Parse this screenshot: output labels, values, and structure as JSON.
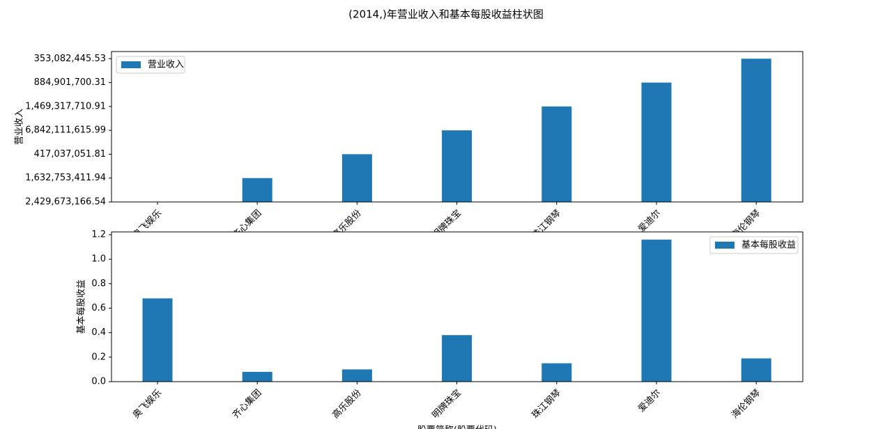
{
  "chart_data": [
    {
      "type": "bar",
      "title": "(2014,)年营业收入和基本每股收益柱状图",
      "y_label": "营业收入",
      "categories": [
        "奥飞娱乐",
        "齐心集团",
        "高乐股份",
        "明牌珠宝",
        "珠江钢琴",
        "爱迪尔",
        "海伦钢琴"
      ],
      "series": [
        {
          "name": "营业收入",
          "color": "#1f77b4",
          "values": [
            0,
            1,
            2,
            3,
            4,
            5,
            6
          ]
        }
      ],
      "ylim": [
        0,
        6.3
      ],
      "yticks": [
        {
          "value": 0,
          "label": "2,429,673,166.54"
        },
        {
          "value": 1,
          "label": "1,632,753,411.94"
        },
        {
          "value": 2,
          "label": "417,037,051.81"
        },
        {
          "value": 3,
          "label": "6,842,111,615.99"
        },
        {
          "value": 4,
          "label": "1,469,317,710.91"
        },
        {
          "value": 5,
          "label": "884,901,700.31"
        },
        {
          "value": 6,
          "label": "353,082,445.53"
        }
      ],
      "legend": "upper left"
    },
    {
      "type": "bar",
      "x_label": "股票简称(股票代码)",
      "y_label": "基本每股收益",
      "categories": [
        "奥飞娱乐",
        "齐心集团",
        "高乐股份",
        "明牌珠宝",
        "珠江钢琴",
        "爱迪尔",
        "海伦钢琴"
      ],
      "series": [
        {
          "name": "基本每股收益",
          "color": "#1f77b4",
          "values": [
            0.68,
            0.08,
            0.1,
            0.38,
            0.15,
            1.16,
            0.19
          ]
        }
      ],
      "ylim": [
        0,
        1.223
      ],
      "yticks": [
        {
          "value": 0,
          "label": "0.0"
        },
        0.2,
        0.4,
        0.6,
        0.8,
        {
          "value": 1,
          "label": "1.0"
        },
        1.2
      ],
      "legend": "upper right"
    }
  ]
}
